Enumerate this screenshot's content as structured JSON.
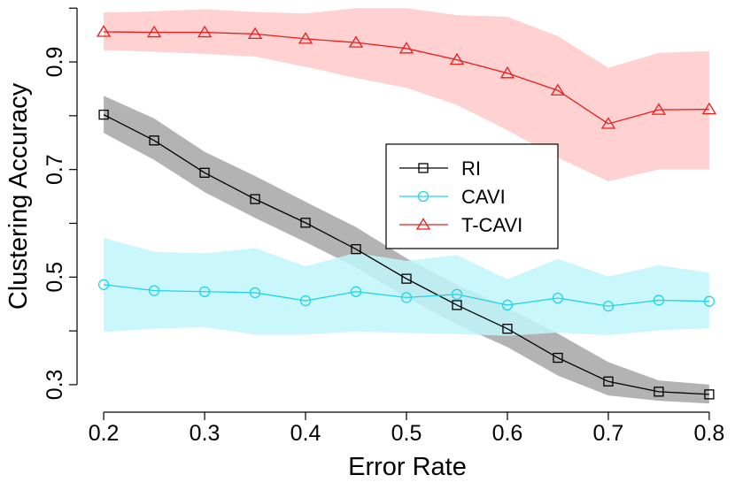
{
  "chart_data": {
    "type": "line",
    "title": "",
    "xlabel": "Error Rate",
    "ylabel": "Clustering Accuracy",
    "xlim": [
      0.185,
      0.815
    ],
    "ylim": [
      0.267,
      1.002
    ],
    "xticks": [
      0.2,
      0.3,
      0.4,
      0.5,
      0.6,
      0.7,
      0.8
    ],
    "xtick_labels": [
      "0.2",
      "0.3",
      "0.4",
      "0.5",
      "0.6",
      "0.7",
      "0.8"
    ],
    "yticks": [
      0.3,
      0.4,
      0.5,
      0.6,
      0.7,
      0.8,
      0.9,
      1.0
    ],
    "ytick_labels": [
      "0.3",
      "",
      "0.5",
      "",
      "0.7",
      "",
      "0.9",
      ""
    ],
    "grid": false,
    "legend_position": "center-right",
    "x": [
      0.2,
      0.25,
      0.3,
      0.35,
      0.4,
      0.45,
      0.5,
      0.55,
      0.6,
      0.65,
      0.7,
      0.75,
      0.8
    ],
    "series": [
      {
        "name": "RI",
        "color": "#000000",
        "band_color": "#a6a6a6",
        "marker": "square",
        "values": [
          0.802,
          0.754,
          0.694,
          0.645,
          0.601,
          0.552,
          0.497,
          0.448,
          0.404,
          0.35,
          0.306,
          0.287,
          0.282
        ],
        "lower": [
          0.768,
          0.718,
          0.658,
          0.61,
          0.565,
          0.518,
          0.462,
          0.412,
          0.37,
          0.317,
          0.28,
          0.27,
          0.265
        ],
        "upper": [
          0.837,
          0.795,
          0.733,
          0.688,
          0.64,
          0.593,
          0.535,
          0.486,
          0.443,
          0.395,
          0.342,
          0.308,
          0.3
        ]
      },
      {
        "name": "CAVI",
        "color": "#22d5e6",
        "band_color": "#bff6fa",
        "marker": "circle",
        "values": [
          0.486,
          0.475,
          0.473,
          0.471,
          0.456,
          0.473,
          0.462,
          0.468,
          0.448,
          0.461,
          0.446,
          0.457,
          0.455
        ],
        "lower": [
          0.398,
          0.404,
          0.407,
          0.393,
          0.393,
          0.399,
          0.396,
          0.394,
          0.391,
          0.397,
          0.392,
          0.401,
          0.405
        ],
        "upper": [
          0.573,
          0.547,
          0.544,
          0.554,
          0.52,
          0.545,
          0.53,
          0.541,
          0.496,
          0.534,
          0.501,
          0.522,
          0.508
        ]
      },
      {
        "name": "T-CAVI",
        "color": "#ee1c1c",
        "band_color": "#ffc9c9",
        "marker": "triangle",
        "values": [
          0.956,
          0.955,
          0.955,
          0.952,
          0.943,
          0.936,
          0.925,
          0.904,
          0.879,
          0.847,
          0.785,
          0.811,
          0.812
        ],
        "lower": [
          0.922,
          0.919,
          0.915,
          0.91,
          0.891,
          0.87,
          0.852,
          0.82,
          0.773,
          0.722,
          0.678,
          0.7,
          0.7
        ],
        "upper": [
          0.992,
          0.994,
          0.998,
          0.993,
          0.99,
          1.0,
          1.0,
          0.987,
          0.984,
          0.948,
          0.889,
          0.917,
          0.92
        ]
      }
    ]
  }
}
